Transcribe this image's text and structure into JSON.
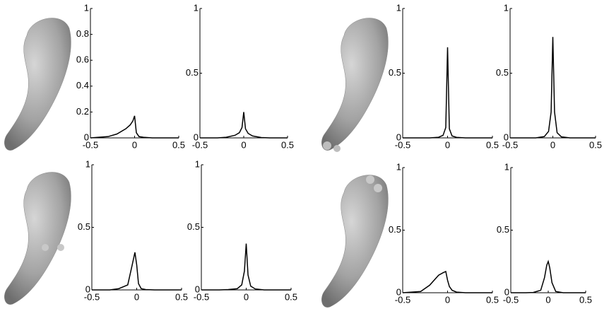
{
  "chart_data": [
    {
      "type": "line",
      "x": [
        -0.5,
        -0.3,
        -0.2,
        -0.1,
        -0.05,
        -0.02,
        0,
        0.02,
        0.05,
        0.1,
        0.2,
        0.3,
        0.5
      ],
      "values": [
        0,
        0.01,
        0.03,
        0.07,
        0.1,
        0.13,
        0.17,
        0.04,
        0.01,
        0.005,
        0,
        0,
        0
      ],
      "color": "#000000",
      "xlim": [
        -0.5,
        0.5
      ],
      "ylim": [
        0,
        1
      ],
      "xticks": [
        -0.5,
        0,
        0.5
      ],
      "yticks": [
        0,
        0.2,
        0.4,
        0.6,
        0.8,
        1
      ]
    },
    {
      "type": "line",
      "x": [
        -0.5,
        -0.3,
        -0.2,
        -0.1,
        -0.05,
        -0.02,
        0,
        0.02,
        0.05,
        0.1,
        0.2,
        0.3,
        0.5
      ],
      "values": [
        0,
        0,
        0.005,
        0.02,
        0.04,
        0.08,
        0.2,
        0.07,
        0.035,
        0.015,
        0.003,
        0,
        0
      ],
      "color": "#000000",
      "xlim": [
        -0.5,
        0.5
      ],
      "ylim": [
        0,
        1
      ],
      "xticks": [
        -0.5,
        0,
        0.5
      ],
      "yticks": [
        0,
        0.5,
        1
      ]
    },
    {
      "type": "line",
      "x": [
        -0.5,
        -0.3,
        -0.2,
        -0.1,
        -0.05,
        -0.02,
        0,
        0.02,
        0.05,
        0.1,
        0.2,
        0.3,
        0.5
      ],
      "values": [
        0,
        0,
        0,
        0.005,
        0.02,
        0.08,
        0.7,
        0.07,
        0.015,
        0.004,
        0,
        0,
        0
      ],
      "color": "#000000",
      "xlim": [
        -0.5,
        0.5
      ],
      "ylim": [
        0,
        1
      ],
      "xticks": [
        -0.5,
        0,
        0.5
      ],
      "yticks": [
        0,
        0.5,
        1
      ]
    },
    {
      "type": "line",
      "x": [
        -0.5,
        -0.3,
        -0.2,
        -0.1,
        -0.05,
        -0.02,
        0,
        0.02,
        0.05,
        0.1,
        0.2,
        0.3,
        0.5
      ],
      "values": [
        0,
        0,
        0,
        0.01,
        0.05,
        0.2,
        0.78,
        0.2,
        0.04,
        0.008,
        0,
        0,
        0
      ],
      "color": "#000000",
      "xlim": [
        -0.5,
        0.5
      ],
      "ylim": [
        0,
        1
      ],
      "xticks": [
        -0.5,
        0,
        0.5
      ],
      "yticks": [
        0,
        0.5,
        1
      ]
    },
    {
      "type": "line",
      "x": [
        -0.5,
        -0.3,
        -0.2,
        -0.1,
        -0.05,
        -0.02,
        0,
        0.02,
        0.05,
        0.1,
        0.2,
        0.3,
        0.5
      ],
      "values": [
        0,
        0,
        0.01,
        0.04,
        0.2,
        0.3,
        0.2,
        0.05,
        0.01,
        0.003,
        0,
        0,
        0
      ],
      "color": "#000000",
      "xlim": [
        -0.5,
        0.5
      ],
      "ylim": [
        0,
        1
      ],
      "xticks": [
        -0.5,
        0,
        0.5
      ],
      "yticks": [
        0,
        0.5,
        1
      ]
    },
    {
      "type": "line",
      "x": [
        -0.5,
        -0.3,
        -0.2,
        -0.1,
        -0.05,
        -0.02,
        0,
        0.02,
        0.05,
        0.1,
        0.2,
        0.3,
        0.5
      ],
      "values": [
        0,
        0,
        0.003,
        0.01,
        0.04,
        0.15,
        0.37,
        0.12,
        0.03,
        0.008,
        0,
        0,
        0
      ],
      "color": "#000000",
      "xlim": [
        -0.5,
        0.5
      ],
      "ylim": [
        0,
        1
      ],
      "xticks": [
        -0.5,
        0,
        0.5
      ],
      "yticks": [
        0,
        0.5,
        1
      ]
    },
    {
      "type": "line",
      "x": [
        -0.5,
        -0.3,
        -0.2,
        -0.1,
        -0.05,
        -0.02,
        0,
        0.02,
        0.05,
        0.1,
        0.2,
        0.3,
        0.5
      ],
      "values": [
        0,
        0.01,
        0.06,
        0.14,
        0.16,
        0.17,
        0.1,
        0.05,
        0.02,
        0.005,
        0,
        0,
        0
      ],
      "color": "#000000",
      "xlim": [
        -0.5,
        0.5
      ],
      "ylim": [
        0,
        1
      ],
      "xticks": [
        -0.5,
        0,
        0.5
      ],
      "yticks": [
        0,
        0.5,
        1
      ]
    },
    {
      "type": "line",
      "x": [
        -0.5,
        -0.3,
        -0.2,
        -0.1,
        -0.05,
        -0.02,
        0,
        0.02,
        0.05,
        0.1,
        0.2,
        0.3,
        0.5
      ],
      "values": [
        0,
        0,
        0.002,
        0.02,
        0.12,
        0.22,
        0.25,
        0.2,
        0.08,
        0.01,
        0,
        0,
        0
      ],
      "color": "#000000",
      "xlim": [
        -0.5,
        0.5
      ],
      "ylim": [
        0,
        1
      ],
      "xticks": [
        -0.5,
        0,
        0.5
      ],
      "yticks": [
        0,
        0.5,
        1
      ]
    }
  ]
}
